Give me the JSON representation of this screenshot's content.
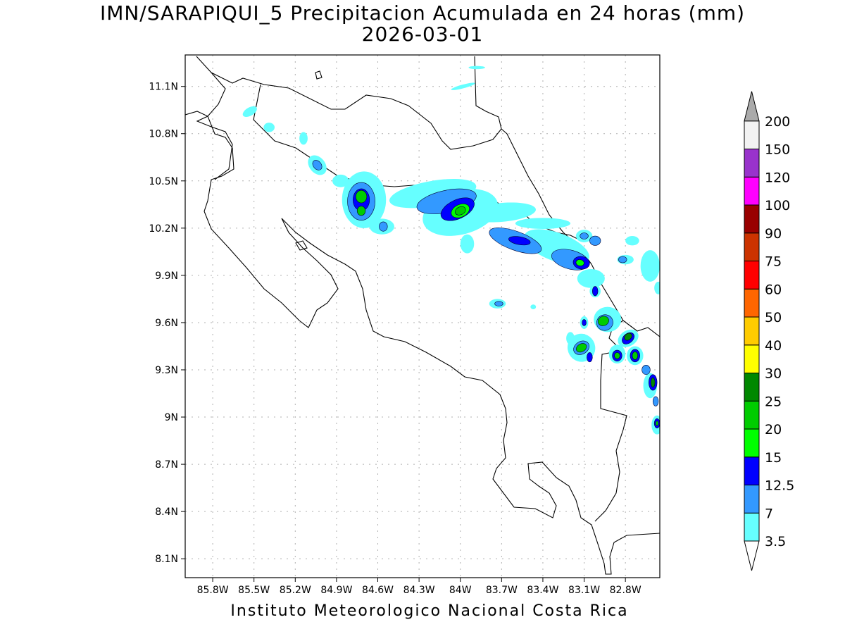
{
  "map": {
    "title_line1": "IMN/SARAPIQUI_5 Precipitacion Acumulada en 24 horas (mm)",
    "title_line2": "2026-03-01",
    "footer": "Instituto Meteorologico Nacional Costa Rica",
    "lon_range": [
      -86.0,
      -82.55
    ],
    "lat_range": [
      7.98,
      11.3
    ],
    "lon_ticks": [
      {
        "value": -85.8,
        "label": "85.8W"
      },
      {
        "value": -85.5,
        "label": "85.5W"
      },
      {
        "value": -85.2,
        "label": "85.2W"
      },
      {
        "value": -84.9,
        "label": "84.9W"
      },
      {
        "value": -84.6,
        "label": "84.6W"
      },
      {
        "value": -84.3,
        "label": "84.3W"
      },
      {
        "value": -84.0,
        "label": "84W"
      },
      {
        "value": -83.7,
        "label": "83.7W"
      },
      {
        "value": -83.4,
        "label": "83.4W"
      },
      {
        "value": -83.1,
        "label": "83.1W"
      },
      {
        "value": -82.8,
        "label": "82.8W"
      }
    ],
    "lat_ticks": [
      {
        "value": 11.1,
        "label": "11.1N"
      },
      {
        "value": 10.8,
        "label": "10.8N"
      },
      {
        "value": 10.5,
        "label": "10.5N"
      },
      {
        "value": 10.2,
        "label": "10.2N"
      },
      {
        "value": 9.9,
        "label": "9.9N"
      },
      {
        "value": 9.6,
        "label": "9.6N"
      },
      {
        "value": 9.3,
        "label": "9.3N"
      },
      {
        "value": 9.0,
        "label": "9N"
      },
      {
        "value": 8.7,
        "label": "8.7N"
      },
      {
        "value": 8.4,
        "label": "8.4N"
      },
      {
        "value": 8.1,
        "label": "8.1N"
      }
    ],
    "grid": true
  },
  "colorbar": {
    "levels": [
      {
        "label": "3.5",
        "color": "#66ffff"
      },
      {
        "label": "7",
        "color": "#3399ff"
      },
      {
        "label": "12.5",
        "color": "#0000ff"
      },
      {
        "label": "15",
        "color": "#00ff00"
      },
      {
        "label": "20",
        "color": "#00cc00"
      },
      {
        "label": "25",
        "color": "#008800"
      },
      {
        "label": "30",
        "color": "#ffff00"
      },
      {
        "label": "40",
        "color": "#ffcc00"
      },
      {
        "label": "50",
        "color": "#ff6600"
      },
      {
        "label": "60",
        "color": "#ff0000"
      },
      {
        "label": "75",
        "color": "#cc3300"
      },
      {
        "label": "90",
        "color": "#990000"
      },
      {
        "label": "100",
        "color": "#ff00ff"
      },
      {
        "label": "120",
        "color": "#9933cc"
      },
      {
        "label": "150",
        "color": "#f2f2f2"
      },
      {
        "label": "200",
        "color": "#aaaaaa"
      }
    ],
    "lower_arrow_color": "#ffffff",
    "upper_arrow_color": "#aaaaaa"
  },
  "precip_cells": [
    {
      "lon": -85.53,
      "lat": 10.94,
      "rx": 0.03,
      "ry": 0.05,
      "level": 1,
      "rot": 60
    },
    {
      "lon": -85.39,
      "lat": 10.84,
      "rx": 0.04,
      "ry": 0.03,
      "level": 1,
      "rot": 0
    },
    {
      "lon": -85.14,
      "lat": 10.77,
      "rx": 0.03,
      "ry": 0.04,
      "level": 1,
      "rot": 0
    },
    {
      "lon": -85.04,
      "lat": 10.6,
      "rx": 0.08,
      "ry": 0.05,
      "level": 1,
      "rot": 50
    },
    {
      "lon": -85.04,
      "lat": 10.6,
      "rx": 0.04,
      "ry": 0.025,
      "level": 2,
      "rot": 50
    },
    {
      "lon": -84.87,
      "lat": 10.5,
      "rx": 0.06,
      "ry": 0.04,
      "level": 1,
      "rot": 0
    },
    {
      "lon": -84.7,
      "lat": 10.38,
      "rx": 0.16,
      "ry": 0.18,
      "level": 1,
      "rot": 0
    },
    {
      "lon": -84.72,
      "lat": 10.37,
      "rx": 0.1,
      "ry": 0.12,
      "level": 2,
      "rot": 0
    },
    {
      "lon": -84.72,
      "lat": 10.38,
      "rx": 0.06,
      "ry": 0.07,
      "level": 3,
      "rot": 0
    },
    {
      "lon": -84.72,
      "lat": 10.4,
      "rx": 0.04,
      "ry": 0.04,
      "level": 5,
      "rot": 0
    },
    {
      "lon": -84.72,
      "lat": 10.31,
      "rx": 0.03,
      "ry": 0.03,
      "level": 5,
      "rot": 0
    },
    {
      "lon": -84.57,
      "lat": 10.21,
      "rx": 0.09,
      "ry": 0.05,
      "level": 1,
      "rot": 0
    },
    {
      "lon": -84.56,
      "lat": 10.21,
      "rx": 0.03,
      "ry": 0.03,
      "level": 2,
      "rot": 0
    },
    {
      "lon": -84.2,
      "lat": 10.42,
      "rx": 0.32,
      "ry": 0.08,
      "level": 1,
      "rot": -10
    },
    {
      "lon": -84.0,
      "lat": 10.3,
      "rx": 0.28,
      "ry": 0.14,
      "level": 1,
      "rot": -15
    },
    {
      "lon": -84.1,
      "lat": 10.37,
      "rx": 0.22,
      "ry": 0.07,
      "level": 2,
      "rot": -12
    },
    {
      "lon": -84.02,
      "lat": 10.32,
      "rx": 0.13,
      "ry": 0.06,
      "level": 3,
      "rot": -25
    },
    {
      "lon": -84.0,
      "lat": 10.31,
      "rx": 0.07,
      "ry": 0.04,
      "level": 4,
      "rot": -25
    },
    {
      "lon": -84.0,
      "lat": 10.31,
      "rx": 0.04,
      "ry": 0.025,
      "level": 5,
      "rot": -25
    },
    {
      "lon": -83.95,
      "lat": 10.1,
      "rx": 0.05,
      "ry": 0.06,
      "level": 1,
      "rot": 0
    },
    {
      "lon": -83.7,
      "lat": 10.3,
      "rx": 0.25,
      "ry": 0.06,
      "level": 1,
      "rot": -5
    },
    {
      "lon": -83.6,
      "lat": 10.12,
      "rx": 0.2,
      "ry": 0.06,
      "level": 2,
      "rot": 20
    },
    {
      "lon": -83.57,
      "lat": 10.12,
      "rx": 0.08,
      "ry": 0.025,
      "level": 3,
      "rot": 10
    },
    {
      "lon": -83.3,
      "lat": 10.08,
      "rx": 0.25,
      "ry": 0.09,
      "level": 1,
      "rot": 20
    },
    {
      "lon": -83.2,
      "lat": 10.0,
      "rx": 0.14,
      "ry": 0.06,
      "level": 2,
      "rot": 15
    },
    {
      "lon": -83.12,
      "lat": 9.98,
      "rx": 0.06,
      "ry": 0.04,
      "level": 3,
      "rot": 10
    },
    {
      "lon": -83.13,
      "lat": 9.98,
      "rx": 0.03,
      "ry": 0.02,
      "level": 4,
      "rot": 10
    },
    {
      "lon": -83.1,
      "lat": 10.15,
      "rx": 0.06,
      "ry": 0.04,
      "level": 1,
      "rot": 0
    },
    {
      "lon": -83.1,
      "lat": 10.15,
      "rx": 0.03,
      "ry": 0.02,
      "level": 2,
      "rot": 0
    },
    {
      "lon": -83.02,
      "lat": 10.12,
      "rx": 0.04,
      "ry": 0.03,
      "level": 2,
      "rot": 0
    },
    {
      "lon": -83.05,
      "lat": 9.88,
      "rx": 0.1,
      "ry": 0.06,
      "level": 1,
      "rot": 0
    },
    {
      "lon": -83.02,
      "lat": 9.8,
      "rx": 0.04,
      "ry": 0.04,
      "level": 1,
      "rot": 0
    },
    {
      "lon": -83.02,
      "lat": 9.8,
      "rx": 0.02,
      "ry": 0.03,
      "level": 3,
      "rot": 0
    },
    {
      "lon": -82.75,
      "lat": 10.12,
      "rx": 0.05,
      "ry": 0.03,
      "level": 1,
      "rot": 0
    },
    {
      "lon": -82.8,
      "lat": 10.0,
      "rx": 0.06,
      "ry": 0.03,
      "level": 1,
      "rot": 0
    },
    {
      "lon": -82.82,
      "lat": 10.0,
      "rx": 0.03,
      "ry": 0.02,
      "level": 2,
      "rot": 0
    },
    {
      "lon": -82.62,
      "lat": 9.96,
      "rx": 0.07,
      "ry": 0.1,
      "level": 1,
      "rot": 0
    },
    {
      "lon": -82.56,
      "lat": 9.82,
      "rx": 0.03,
      "ry": 0.04,
      "level": 1,
      "rot": 0
    },
    {
      "lon": -83.73,
      "lat": 9.72,
      "rx": 0.06,
      "ry": 0.03,
      "level": 1,
      "rot": 0
    },
    {
      "lon": -83.72,
      "lat": 9.72,
      "rx": 0.03,
      "ry": 0.015,
      "level": 2,
      "rot": 0
    },
    {
      "lon": -83.47,
      "lat": 9.7,
      "rx": 0.02,
      "ry": 0.015,
      "level": 1,
      "rot": 0
    },
    {
      "lon": -82.93,
      "lat": 9.62,
      "rx": 0.1,
      "ry": 0.08,
      "level": 1,
      "rot": 0
    },
    {
      "lon": -82.95,
      "lat": 9.6,
      "rx": 0.06,
      "ry": 0.05,
      "level": 2,
      "rot": -20
    },
    {
      "lon": -82.96,
      "lat": 9.61,
      "rx": 0.04,
      "ry": 0.03,
      "level": 5,
      "rot": -20
    },
    {
      "lon": -83.1,
      "lat": 9.6,
      "rx": 0.03,
      "ry": 0.04,
      "level": 1,
      "rot": 0
    },
    {
      "lon": -83.1,
      "lat": 9.6,
      "rx": 0.015,
      "ry": 0.02,
      "level": 3,
      "rot": 0
    },
    {
      "lon": -83.2,
      "lat": 9.5,
      "rx": 0.03,
      "ry": 0.04,
      "level": 1,
      "rot": 0
    },
    {
      "lon": -83.12,
      "lat": 9.44,
      "rx": 0.1,
      "ry": 0.09,
      "level": 1,
      "rot": -30
    },
    {
      "lon": -83.12,
      "lat": 9.44,
      "rx": 0.06,
      "ry": 0.04,
      "level": 2,
      "rot": -30
    },
    {
      "lon": -83.12,
      "lat": 9.44,
      "rx": 0.04,
      "ry": 0.025,
      "level": 5,
      "rot": -30
    },
    {
      "lon": -83.06,
      "lat": 9.38,
      "rx": 0.02,
      "ry": 0.03,
      "level": 3,
      "rot": 0
    },
    {
      "lon": -82.86,
      "lat": 9.4,
      "rx": 0.06,
      "ry": 0.06,
      "level": 1,
      "rot": 0
    },
    {
      "lon": -82.86,
      "lat": 9.39,
      "rx": 0.035,
      "ry": 0.035,
      "level": 3,
      "rot": 0
    },
    {
      "lon": -82.86,
      "lat": 9.39,
      "rx": 0.02,
      "ry": 0.02,
      "level": 5,
      "rot": 0
    },
    {
      "lon": -82.78,
      "lat": 9.5,
      "rx": 0.08,
      "ry": 0.05,
      "level": 1,
      "rot": -30
    },
    {
      "lon": -82.78,
      "lat": 9.5,
      "rx": 0.05,
      "ry": 0.03,
      "level": 3,
      "rot": -40
    },
    {
      "lon": -82.78,
      "lat": 9.51,
      "rx": 0.03,
      "ry": 0.02,
      "level": 6,
      "rot": -40
    },
    {
      "lon": -82.73,
      "lat": 9.39,
      "rx": 0.06,
      "ry": 0.06,
      "level": 1,
      "rot": 0
    },
    {
      "lon": -82.73,
      "lat": 9.39,
      "rx": 0.035,
      "ry": 0.04,
      "level": 3,
      "rot": 0
    },
    {
      "lon": -82.73,
      "lat": 9.39,
      "rx": 0.02,
      "ry": 0.025,
      "level": 5,
      "rot": 0
    },
    {
      "lon": -82.65,
      "lat": 9.3,
      "rx": 0.03,
      "ry": 0.03,
      "level": 2,
      "rot": 0
    },
    {
      "lon": -82.62,
      "lat": 9.2,
      "rx": 0.05,
      "ry": 0.08,
      "level": 1,
      "rot": 0
    },
    {
      "lon": -82.6,
      "lat": 9.22,
      "rx": 0.03,
      "ry": 0.05,
      "level": 3,
      "rot": 0
    },
    {
      "lon": -82.6,
      "lat": 9.22,
      "rx": 0.015,
      "ry": 0.03,
      "level": 6,
      "rot": 0
    },
    {
      "lon": -82.58,
      "lat": 9.1,
      "rx": 0.02,
      "ry": 0.03,
      "level": 2,
      "rot": 0
    },
    {
      "lon": -82.57,
      "lat": 8.95,
      "rx": 0.04,
      "ry": 0.06,
      "level": 1,
      "rot": 0
    },
    {
      "lon": -82.57,
      "lat": 8.96,
      "rx": 0.02,
      "ry": 0.03,
      "level": 3,
      "rot": 0
    },
    {
      "lon": -82.57,
      "lat": 8.96,
      "rx": 0.01,
      "ry": 0.015,
      "level": 5,
      "rot": 0
    },
    {
      "lon": -83.4,
      "lat": 10.23,
      "rx": 0.2,
      "ry": 0.035,
      "level": 1,
      "rot": 0
    },
    {
      "lon": -83.98,
      "lat": 11.1,
      "rx": 0.09,
      "ry": 0.012,
      "level": 1,
      "rot": -15
    },
    {
      "lon": -83.88,
      "lat": 11.22,
      "rx": 0.06,
      "ry": 0.01,
      "level": 1,
      "rot": 0
    }
  ]
}
